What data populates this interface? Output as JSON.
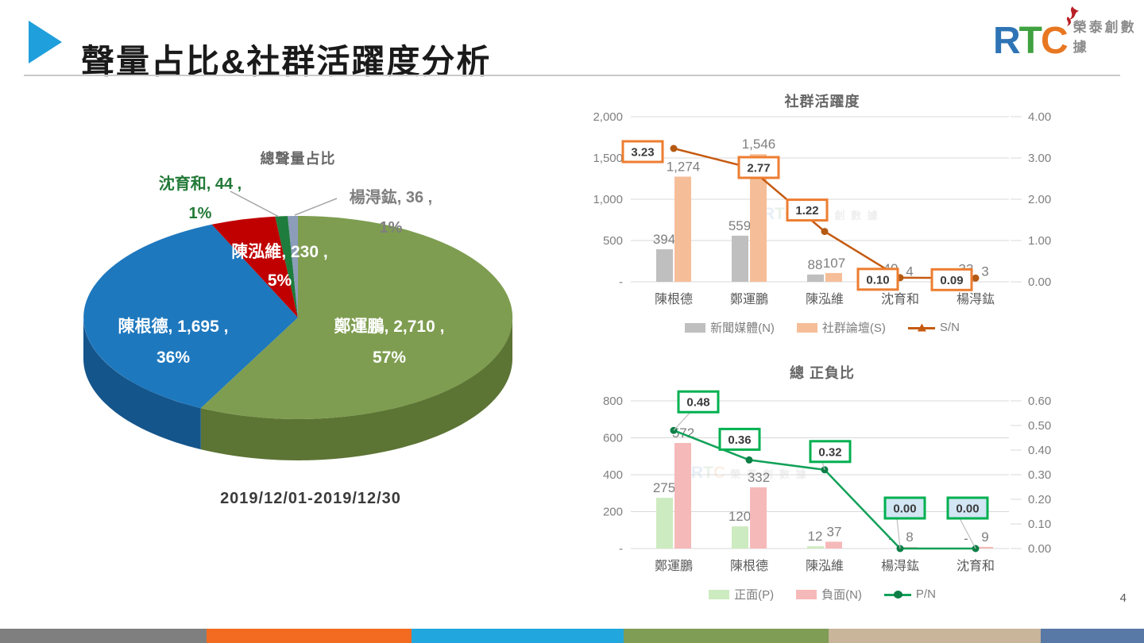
{
  "header": {
    "title": "聲量占比&社群活躍度分析",
    "logo": {
      "letters": [
        "R",
        "T",
        "C"
      ],
      "letter_colors": [
        "#2E74B5",
        "#3FA13F",
        "#E87722"
      ],
      "flame_color": "#B92025",
      "subtext": "榮泰創數據"
    }
  },
  "page_number": "4",
  "pie": {
    "title": "總聲量占比",
    "date_range": "2019/12/01-2019/12/30"
  },
  "chart_data": [
    {
      "type": "pie",
      "title": "總聲量占比",
      "subtitle": "2019/12/01-2019/12/30",
      "labels": [
        "鄭運鵬",
        "陳根德",
        "陳泓維",
        "沈育和",
        "楊淂鈜"
      ],
      "values": [
        2710,
        1695,
        230,
        44,
        36
      ],
      "value_labels": [
        "2,710",
        "1,695",
        "230",
        "44",
        "36"
      ],
      "percent_labels": [
        "57%",
        "36%",
        "5%",
        "1%",
        "1%"
      ],
      "colors": [
        "#7E9D50",
        "#1E78BE",
        "#C00000",
        "#1E7C3C",
        "#8B9DB9"
      ],
      "side_colors": [
        "#5C7434",
        "#14558B",
        "#8F0000",
        "#155C2C",
        "#68788F"
      ],
      "label_colors": [
        "#FFFFFF",
        "#FFFFFF",
        "#FFFFFF",
        "#237A38",
        "#7F7F7F"
      ],
      "style": "3d-pie",
      "start_angle_deg": 0,
      "direction": "clockwise"
    },
    {
      "type": "bar",
      "subtype": "bar+line combo, dual axis",
      "title": "社群活躍度",
      "categories": [
        "陳根德",
        "鄭運鵬",
        "陳泓維",
        "沈育和",
        "楊淂鈜"
      ],
      "series": [
        {
          "name": "新聞媒體(N)",
          "chart": "bar",
          "axis": "left",
          "color": "#BFBFBF",
          "values": [
            394,
            559,
            88,
            40,
            33
          ],
          "value_labels": [
            "394",
            "559",
            "88",
            "40",
            "33"
          ]
        },
        {
          "name": "社群論壇(S)",
          "chart": "bar",
          "axis": "left",
          "color": "#F6BE98",
          "values": [
            1274,
            1546,
            107,
            4,
            3
          ],
          "value_labels": [
            "1,274",
            "1,546",
            "107",
            "4",
            "3"
          ]
        },
        {
          "name": "S/N",
          "chart": "line",
          "axis": "right",
          "color": "#C55A11",
          "marker_color": "#B55A13",
          "values": [
            3.23,
            2.77,
            1.22,
            0.1,
            0.09
          ],
          "value_labels": [
            "3.23",
            "2.77",
            "1.22",
            "0.10",
            "0.09"
          ]
        }
      ],
      "left_axis": {
        "range": [
          0,
          2000
        ],
        "ticks": [
          "2,000",
          "1,500",
          "1,000",
          "500",
          "-"
        ]
      },
      "right_axis": {
        "range": [
          0,
          4
        ],
        "ticks": [
          "4.00",
          "3.00",
          "2.00",
          "1.00",
          "0.00"
        ]
      },
      "grid": true,
      "legend_position": "bottom",
      "label_box_border": "#ED7D31"
    },
    {
      "type": "bar",
      "subtype": "bar+line combo, dual axis",
      "title": "總 正負比",
      "categories": [
        "鄭運鵬",
        "陳根德",
        "陳泓維",
        "楊淂鈜",
        "沈育和"
      ],
      "series": [
        {
          "name": "正面(P)",
          "chart": "bar",
          "axis": "left",
          "color": "#CDEBC0",
          "values": [
            275,
            120,
            12,
            0,
            0
          ],
          "value_labels": [
            "275",
            "120",
            "12",
            "-",
            "-"
          ]
        },
        {
          "name": "負面(N)",
          "chart": "bar",
          "axis": "left",
          "color": "#F6B9B9",
          "values": [
            572,
            332,
            37,
            8,
            9
          ],
          "value_labels": [
            "572",
            "332",
            "37",
            "8",
            "9"
          ]
        },
        {
          "name": "P/N",
          "chart": "line",
          "axis": "right",
          "color": "#12A159",
          "marker_color": "#0B7F46",
          "values": [
            0.48,
            0.36,
            0.32,
            0.0,
            0.0
          ],
          "value_labels": [
            "0.48",
            "0.36",
            "0.32",
            "0.00",
            "0.00"
          ]
        }
      ],
      "left_axis": {
        "range": [
          0,
          800
        ],
        "ticks": [
          "800",
          "600",
          "400",
          "200",
          "-"
        ]
      },
      "right_axis": {
        "range": [
          0,
          0.6
        ],
        "ticks": [
          "0.60",
          "0.50",
          "0.40",
          "0.30",
          "0.20",
          "0.10",
          "0.00"
        ]
      },
      "grid": true,
      "legend_position": "bottom",
      "label_box_border": "#00B050",
      "zero_label_box_fill": "#D2E6F4"
    }
  ],
  "footer": {
    "stripe_colors": [
      "#7F7F7F",
      "#F26B21",
      "#21A7DE",
      "#7F9D55",
      "#C8B59A",
      "#5878A5"
    ]
  }
}
